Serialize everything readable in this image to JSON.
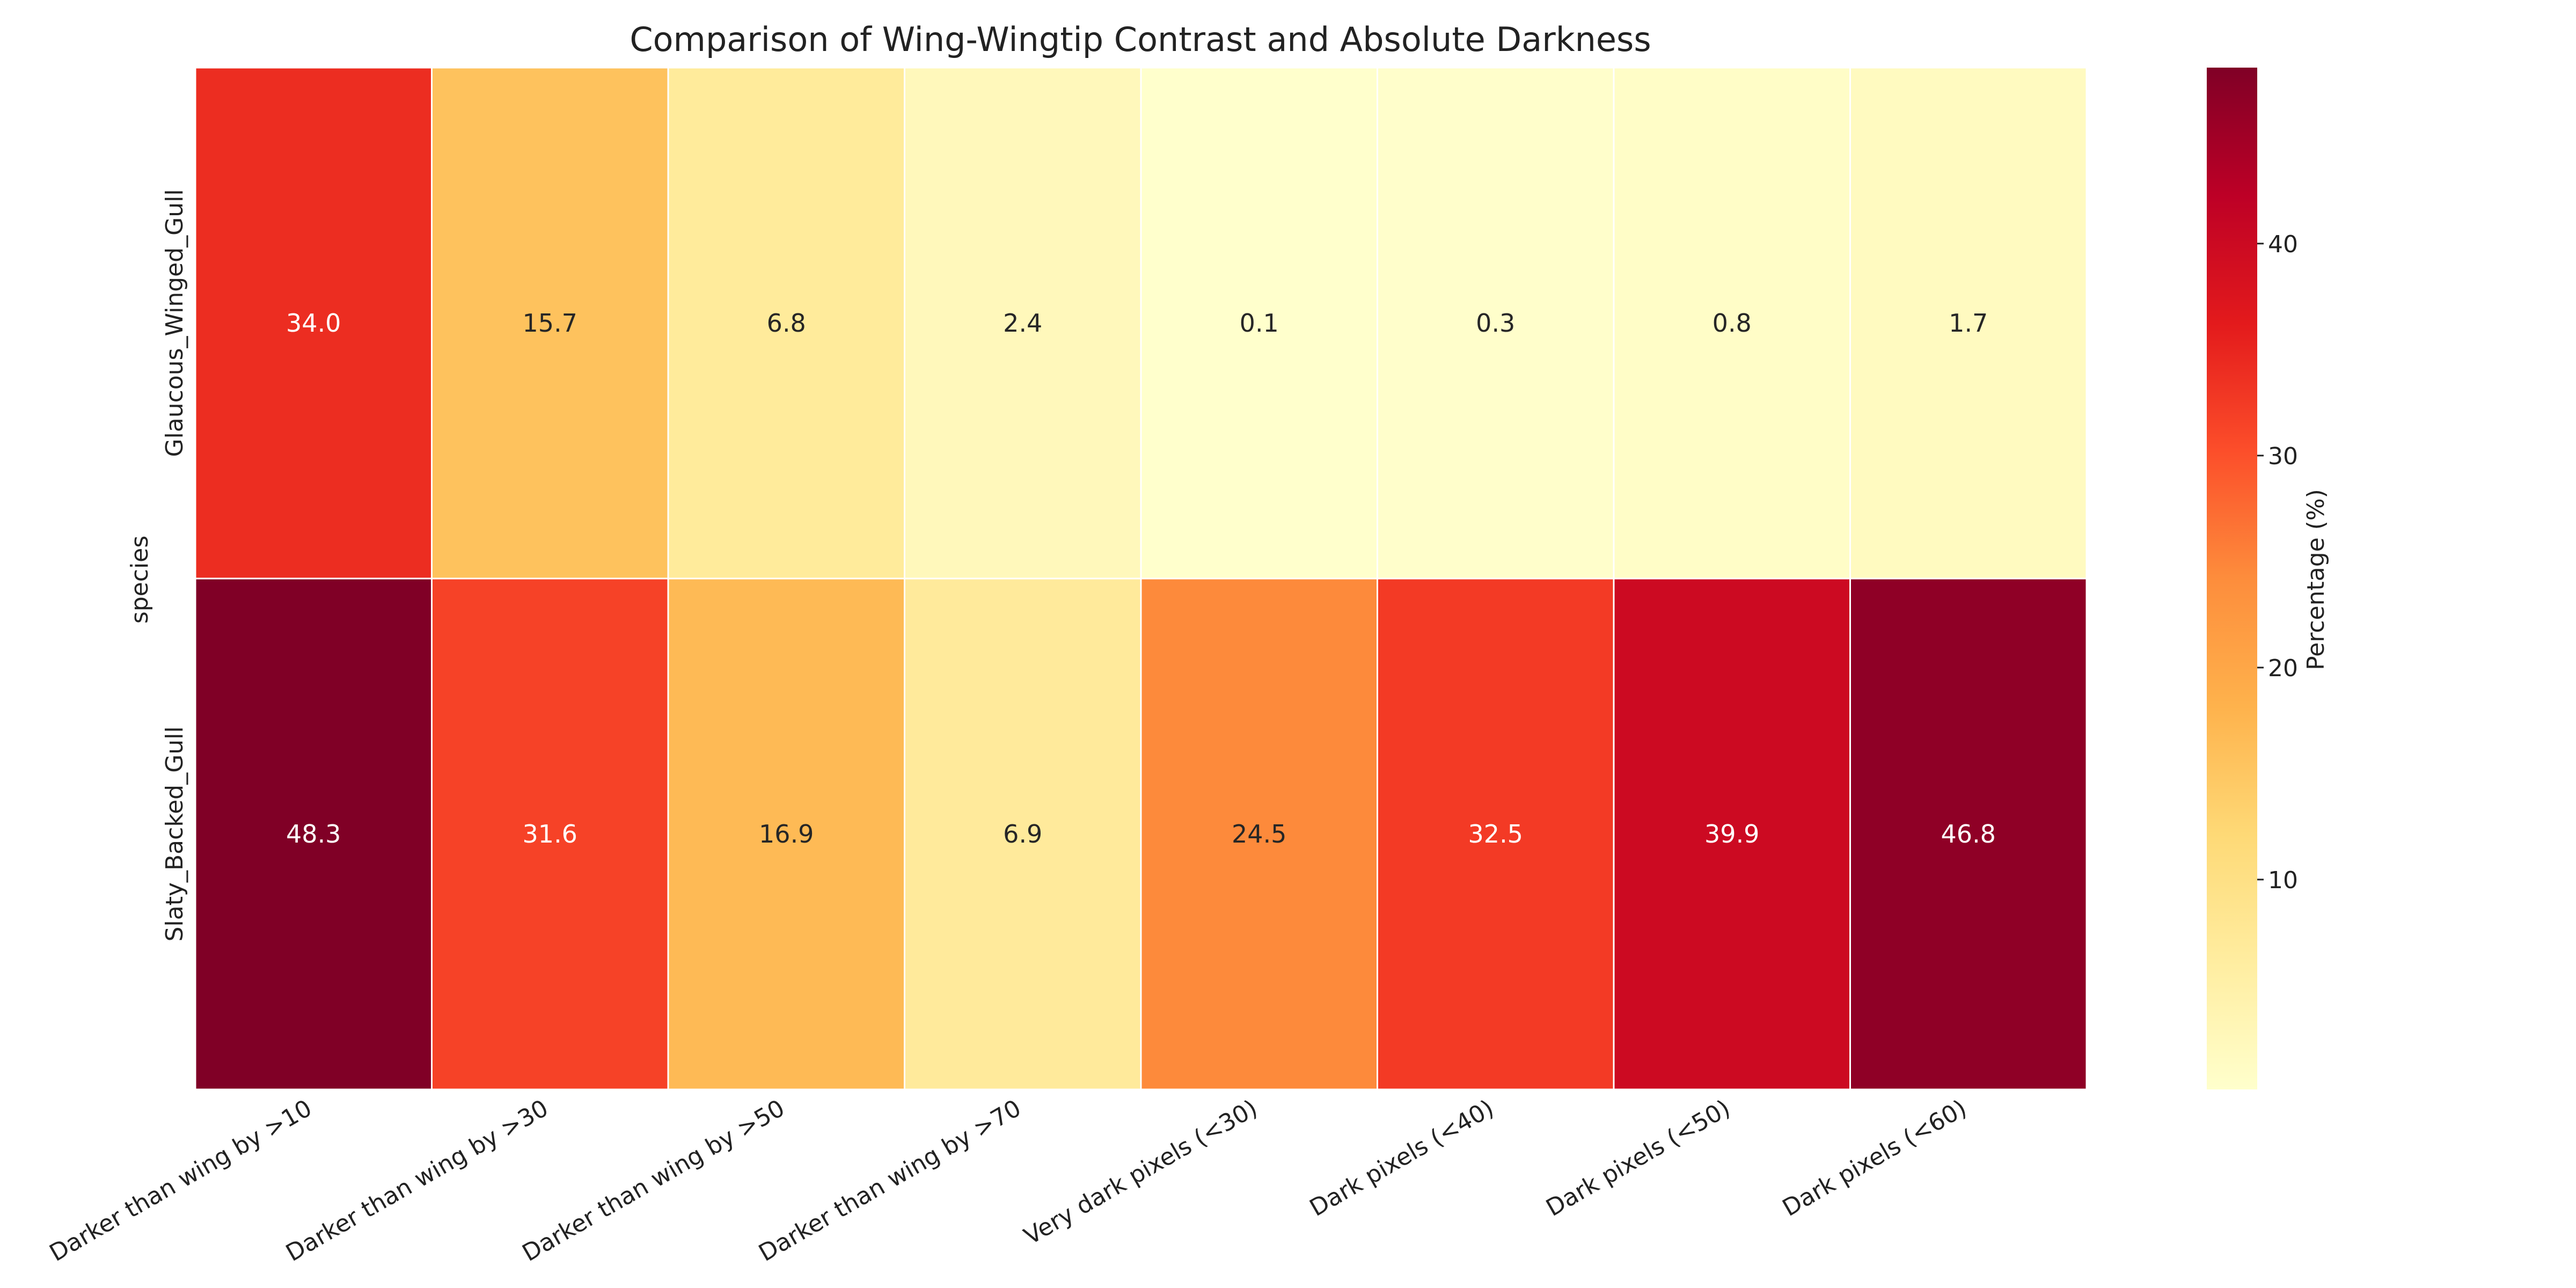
{
  "chart_data": {
    "type": "heatmap",
    "title": "Comparison of Wing-Wingtip Contrast and Absolute Darkness",
    "xlabel": "",
    "ylabel": "species",
    "x_categories": [
      "Darker than wing by >10",
      "Darker than wing by >30",
      "Darker than wing by >50",
      "Darker than wing by >70",
      "Very dark pixels (<30)",
      "Dark pixels (<40)",
      "Dark pixels (<50)",
      "Dark pixels (<60)"
    ],
    "y_categories": [
      "Glaucous_Winged_Gull",
      "Slaty_Backed_Gull"
    ],
    "values": [
      [
        34.0,
        15.7,
        6.8,
        2.4,
        0.1,
        0.3,
        0.8,
        1.7
      ],
      [
        48.3,
        31.6,
        16.9,
        6.9,
        24.5,
        32.5,
        39.9,
        46.8
      ]
    ],
    "value_labels": [
      [
        "34.0",
        "15.7",
        "6.8",
        "2.4",
        "0.1",
        "0.3",
        "0.8",
        "1.7"
      ],
      [
        "48.3",
        "31.6",
        "16.9",
        "6.9",
        "24.5",
        "32.5",
        "39.9",
        "46.8"
      ]
    ],
    "colormap": "YlOrRd",
    "colorbar": {
      "label": "Percentage (%)",
      "range": [
        0.1,
        48.3
      ],
      "ticks": [
        "10",
        "20",
        "30",
        "40"
      ]
    },
    "cell_border_color": "#ffffff"
  }
}
